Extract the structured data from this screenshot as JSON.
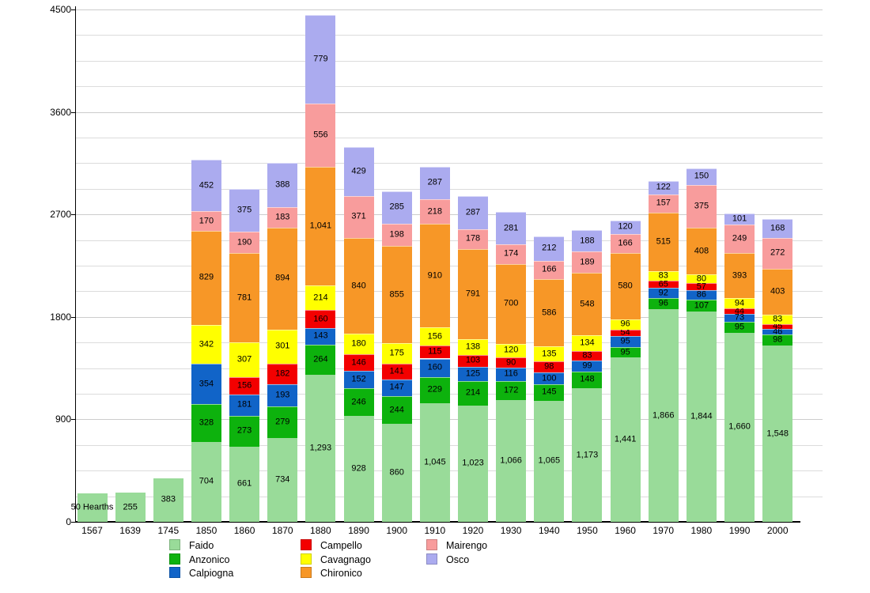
{
  "page": {
    "background": "#ffffff"
  },
  "chart_data": {
    "type": "bar",
    "stacked": true,
    "title": "",
    "xlabel": "",
    "ylabel": "",
    "grid": true,
    "x_categories": [
      "1567",
      "1639",
      "1745",
      "1850",
      "1860",
      "1870",
      "1880",
      "1890",
      "1900",
      "1910",
      "1920",
      "1930",
      "1940",
      "1950",
      "1960",
      "1970",
      "1980",
      "1990",
      "2000"
    ],
    "y_axis": {
      "ticks": [
        0,
        900,
        1800,
        2700,
        3600,
        4500
      ],
      "max": 4500,
      "minor_grid_step": 225
    },
    "series": [
      {
        "name": "Faido",
        "color": "#99db99",
        "values": [
          250,
          255,
          383,
          704,
          661,
          734,
          1293,
          928,
          860,
          1045,
          1023,
          1066,
          1065,
          1173,
          1441,
          1866,
          1844,
          1660,
          1548
        ],
        "display": {
          "0": "50 Hearths"
        }
      },
      {
        "name": "Anzonico",
        "color": "#0db20d",
        "values": [
          null,
          null,
          null,
          328,
          273,
          279,
          264,
          246,
          244,
          229,
          214,
          172,
          145,
          148,
          95,
          96,
          107,
          95,
          98
        ]
      },
      {
        "name": "Calpiogna",
        "color": "#1164c8",
        "values": [
          null,
          null,
          null,
          354,
          181,
          193,
          143,
          152,
          147,
          160,
          125,
          116,
          100,
          99,
          95,
          92,
          86,
          73,
          46
        ]
      },
      {
        "name": "Campello",
        "color": "#f30000",
        "values": [
          null,
          null,
          null,
          0,
          156,
          182,
          160,
          146,
          141,
          115,
          103,
          90,
          98,
          83,
          54,
          65,
          57,
          44,
          45
        ],
        "display": {
          "3": "▪"
        }
      },
      {
        "name": "Cavagnago",
        "color": "#ffff00",
        "values": [
          null,
          null,
          null,
          342,
          307,
          301,
          214,
          180,
          175,
          156,
          138,
          120,
          135,
          134,
          96,
          83,
          80,
          94,
          83
        ]
      },
      {
        "name": "Chironico",
        "color": "#f79727",
        "values": [
          null,
          null,
          null,
          829,
          781,
          894,
          1041,
          840,
          855,
          910,
          791,
          700,
          586,
          548,
          580,
          515,
          408,
          393,
          403
        ]
      },
      {
        "name": "Mairengo",
        "color": "#f89c9c",
        "values": [
          null,
          null,
          null,
          170,
          190,
          183,
          556,
          371,
          198,
          218,
          178,
          174,
          166,
          189,
          166,
          157,
          375,
          249,
          272
        ]
      },
      {
        "name": "Osco",
        "color": "#ababef",
        "values": [
          null,
          null,
          null,
          452,
          375,
          388,
          779,
          429,
          285,
          287,
          287,
          281,
          212,
          188,
          120,
          122,
          150,
          101,
          168
        ]
      }
    ],
    "legend_columns": [
      [
        "Faido",
        "Anzonico",
        "Calpiogna"
      ],
      [
        "Campello",
        "Cavagnago",
        "Chironico"
      ],
      [
        "Mairengo",
        "Osco"
      ]
    ],
    "legend_position": "bottom"
  }
}
